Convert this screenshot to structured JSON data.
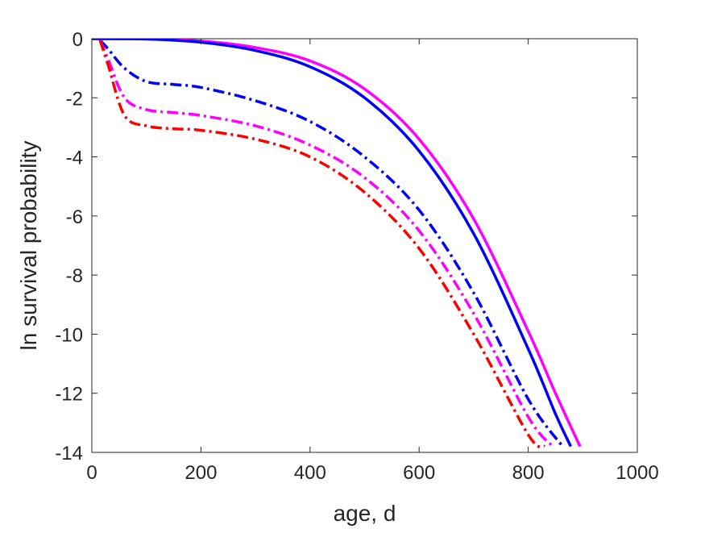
{
  "chart_data": {
    "type": "line",
    "title": "",
    "xlabel": "age, d",
    "ylabel": "ln survival probability",
    "xlim": [
      0,
      1000
    ],
    "ylim": [
      -14,
      0
    ],
    "xticks": [
      0,
      200,
      400,
      600,
      800,
      1000
    ],
    "yticks": [
      0,
      -2,
      -4,
      -6,
      -8,
      -10,
      -12,
      -14
    ],
    "xtick_labels": [
      "0",
      "200",
      "400",
      "600",
      "800",
      "1000"
    ],
    "ytick_labels": [
      "0",
      "-2",
      "-4",
      "-6",
      "-8",
      "-10",
      "-12",
      "-14"
    ],
    "grid": false,
    "legend": "none",
    "series": [
      {
        "color": "#ff00ff",
        "style": "solid",
        "x": [
          0,
          100,
          200,
          300,
          400,
          500,
          600,
          700,
          800,
          850,
          895
        ],
        "y": [
          0,
          -0.01,
          -0.08,
          -0.3,
          -0.75,
          -1.7,
          -3.4,
          -6.1,
          -9.9,
          -12.0,
          -13.8
        ]
      },
      {
        "color": "#0000ff",
        "style": "solid",
        "x": [
          0,
          100,
          200,
          300,
          400,
          500,
          600,
          700,
          800,
          850,
          878
        ],
        "y": [
          0,
          -0.01,
          -0.12,
          -0.4,
          -0.95,
          -2.0,
          -3.8,
          -6.6,
          -10.5,
          -12.7,
          -13.8
        ]
      },
      {
        "color": "#0000ff",
        "style": "dashdot",
        "x": [
          15,
          30,
          60,
          100,
          150,
          200,
          300,
          400,
          500,
          600,
          700,
          800,
          863
        ],
        "y": [
          -0.05,
          -0.35,
          -1.0,
          -1.45,
          -1.55,
          -1.65,
          -2.1,
          -2.8,
          -4.0,
          -5.8,
          -8.6,
          -12.2,
          -13.8
        ]
      },
      {
        "color": "#ff00ff",
        "style": "dashdot",
        "x": [
          15,
          30,
          60,
          100,
          150,
          200,
          300,
          400,
          500,
          600,
          700,
          800,
          845
        ],
        "y": [
          -0.05,
          -0.7,
          -2.0,
          -2.4,
          -2.5,
          -2.6,
          -2.95,
          -3.6,
          -4.7,
          -6.5,
          -9.3,
          -12.8,
          -13.8
        ]
      },
      {
        "color": "#ff0000",
        "style": "dashdot",
        "x": [
          15,
          30,
          60,
          100,
          150,
          200,
          300,
          400,
          500,
          600,
          700,
          800,
          830
        ],
        "y": [
          -0.05,
          -0.9,
          -2.6,
          -2.95,
          -3.05,
          -3.1,
          -3.4,
          -4.0,
          -5.2,
          -7.1,
          -10.0,
          -13.4,
          -13.8
        ]
      }
    ]
  }
}
